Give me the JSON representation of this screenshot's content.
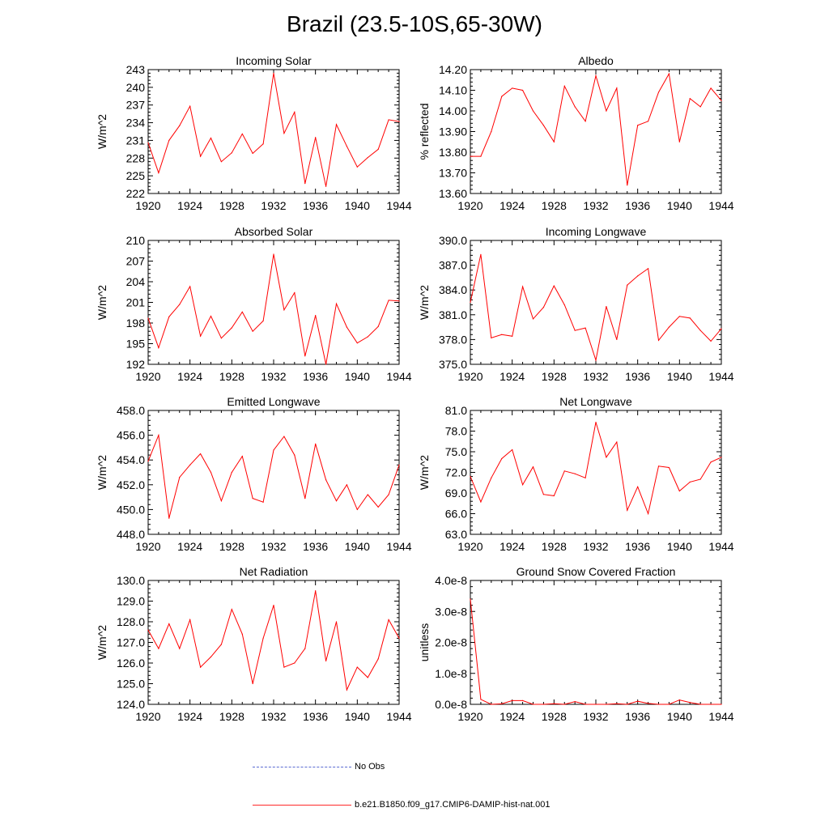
{
  "figure": {
    "title": "Brazil (23.5-10S,65-30W)"
  },
  "legend": {
    "items": [
      {
        "label": "No Obs",
        "color": "#5a6ad2",
        "style": "dashed"
      },
      {
        "label": "b.e21.B1850.f09_g17.CMIP6-DAMIP-hist-nat.001",
        "color": "#ff0000",
        "style": "solid"
      }
    ]
  },
  "chart_data": [
    {
      "type": "line",
      "title": "Incoming Solar",
      "ylabel": "W/m^2",
      "xlim": [
        1920,
        1944
      ],
      "ylim": [
        222,
        243
      ],
      "xticks": [
        1920,
        1924,
        1928,
        1932,
        1936,
        1940,
        1944
      ],
      "yticks": [
        "222",
        "225",
        "228",
        "231",
        "234",
        "237",
        "240",
        "243"
      ],
      "x": [
        1920,
        1921,
        1922,
        1923,
        1924,
        1925,
        1926,
        1927,
        1928,
        1929,
        1930,
        1931,
        1932,
        1933,
        1934,
        1935,
        1936,
        1937,
        1938,
        1939,
        1940,
        1941,
        1942,
        1943,
        1944
      ],
      "series": [
        {
          "values": [
            230.6,
            225.5,
            231.0,
            233.5,
            236.8,
            228.3,
            231.4,
            227.4,
            228.9,
            232.1,
            228.8,
            230.4,
            242.4,
            232.2,
            235.8,
            223.7,
            231.5,
            223.2,
            233.7,
            230.0,
            226.5,
            228.1,
            229.5,
            234.5,
            234.2
          ]
        }
      ]
    },
    {
      "type": "line",
      "title": "Albedo",
      "ylabel": "% reflected",
      "xlim": [
        1920,
        1944
      ],
      "ylim": [
        13.6,
        14.2
      ],
      "xticks": [
        1920,
        1924,
        1928,
        1932,
        1936,
        1940,
        1944
      ],
      "yticks": [
        "13.60",
        "13.70",
        "13.80",
        "13.90",
        "14.00",
        "14.10",
        "14.20"
      ],
      "x": [
        1920,
        1921,
        1922,
        1923,
        1924,
        1925,
        1926,
        1927,
        1928,
        1929,
        1930,
        1931,
        1932,
        1933,
        1934,
        1935,
        1936,
        1937,
        1938,
        1939,
        1940,
        1941,
        1942,
        1943,
        1944
      ],
      "series": [
        {
          "values": [
            13.78,
            13.78,
            13.9,
            14.07,
            14.11,
            14.1,
            14.0,
            13.93,
            13.85,
            14.12,
            14.02,
            13.95,
            14.17,
            14.0,
            14.11,
            13.64,
            13.93,
            13.95,
            14.09,
            14.18,
            13.85,
            14.06,
            14.02,
            14.11,
            14.05
          ]
        }
      ]
    },
    {
      "type": "line",
      "title": "Absorbed Solar",
      "ylabel": "W/m^2",
      "xlim": [
        1920,
        1944
      ],
      "ylim": [
        192,
        210
      ],
      "xticks": [
        1920,
        1924,
        1928,
        1932,
        1936,
        1940,
        1944
      ],
      "yticks": [
        "192",
        "195",
        "198",
        "201",
        "204",
        "207",
        "210"
      ],
      "x": [
        1920,
        1921,
        1922,
        1923,
        1924,
        1925,
        1926,
        1927,
        1928,
        1929,
        1930,
        1931,
        1932,
        1933,
        1934,
        1935,
        1936,
        1937,
        1938,
        1939,
        1940,
        1941,
        1942,
        1943,
        1944
      ],
      "series": [
        {
          "values": [
            198.7,
            194.4,
            198.9,
            200.7,
            203.3,
            196.1,
            199.0,
            195.8,
            197.3,
            199.6,
            196.8,
            198.3,
            208.0,
            199.9,
            202.4,
            193.2,
            199.1,
            192.0,
            200.8,
            197.4,
            195.1,
            196.0,
            197.5,
            201.3,
            201.2
          ]
        }
      ]
    },
    {
      "type": "line",
      "title": "Incoming Longwave",
      "ylabel": "W/m^2",
      "xlim": [
        1920,
        1944
      ],
      "ylim": [
        375,
        390
      ],
      "xticks": [
        1920,
        1924,
        1928,
        1932,
        1936,
        1940,
        1944
      ],
      "yticks": [
        "375.0",
        "378.0",
        "381.0",
        "384.0",
        "387.0",
        "390.0"
      ],
      "x": [
        1920,
        1921,
        1922,
        1923,
        1924,
        1925,
        1926,
        1927,
        1928,
        1929,
        1930,
        1931,
        1932,
        1933,
        1934,
        1935,
        1936,
        1937,
        1938,
        1939,
        1940,
        1941,
        1942,
        1943,
        1944
      ],
      "series": [
        {
          "values": [
            382.5,
            388.3,
            378.2,
            378.6,
            378.4,
            384.4,
            380.5,
            381.9,
            384.5,
            382.2,
            379.1,
            379.4,
            375.5,
            382.0,
            378.0,
            384.6,
            385.7,
            386.6,
            377.9,
            379.5,
            380.8,
            380.6,
            379.1,
            377.8,
            379.3
          ]
        }
      ]
    },
    {
      "type": "line",
      "title": "Emitted Longwave",
      "ylabel": "W/m^2",
      "xlim": [
        1920,
        1944
      ],
      "ylim": [
        448,
        458
      ],
      "xticks": [
        1920,
        1924,
        1928,
        1932,
        1936,
        1940,
        1944
      ],
      "yticks": [
        "448.0",
        "450.0",
        "452.0",
        "454.0",
        "456.0",
        "458.0"
      ],
      "x": [
        1920,
        1921,
        1922,
        1923,
        1924,
        1925,
        1926,
        1927,
        1928,
        1929,
        1930,
        1931,
        1932,
        1933,
        1934,
        1935,
        1936,
        1937,
        1938,
        1939,
        1940,
        1941,
        1942,
        1943,
        1944
      ],
      "series": [
        {
          "values": [
            453.9,
            456.0,
            449.3,
            452.6,
            453.6,
            454.5,
            453.0,
            450.7,
            453.0,
            454.3,
            450.9,
            450.6,
            454.8,
            455.9,
            454.4,
            450.9,
            455.3,
            452.4,
            450.7,
            452.0,
            450.0,
            451.2,
            450.2,
            451.2,
            453.6
          ]
        }
      ]
    },
    {
      "type": "line",
      "title": "Net Longwave",
      "ylabel": "W/m^2",
      "xlim": [
        1920,
        1944
      ],
      "ylim": [
        63,
        81
      ],
      "xticks": [
        1920,
        1924,
        1928,
        1932,
        1936,
        1940,
        1944
      ],
      "yticks": [
        "63.0",
        "66.0",
        "69.0",
        "72.0",
        "75.0",
        "78.0",
        "81.0"
      ],
      "x": [
        1920,
        1921,
        1922,
        1923,
        1924,
        1925,
        1926,
        1927,
        1928,
        1929,
        1930,
        1931,
        1932,
        1933,
        1934,
        1935,
        1936,
        1937,
        1938,
        1939,
        1940,
        1941,
        1942,
        1943,
        1944
      ],
      "series": [
        {
          "values": [
            71.4,
            67.7,
            71.2,
            74.0,
            75.3,
            70.2,
            72.8,
            68.8,
            68.6,
            72.2,
            71.8,
            71.2,
            79.3,
            74.2,
            76.4,
            66.5,
            69.9,
            66.0,
            72.9,
            72.7,
            69.3,
            70.6,
            71.0,
            73.5,
            74.2
          ]
        }
      ]
    },
    {
      "type": "line",
      "title": "Net Radiation",
      "ylabel": "W/m^2",
      "xlim": [
        1920,
        1944
      ],
      "ylim": [
        124,
        130
      ],
      "xticks": [
        1920,
        1924,
        1928,
        1932,
        1936,
        1940,
        1944
      ],
      "yticks": [
        "124.0",
        "125.0",
        "126.0",
        "127.0",
        "128.0",
        "129.0",
        "130.0"
      ],
      "x": [
        1920,
        1921,
        1922,
        1923,
        1924,
        1925,
        1926,
        1927,
        1928,
        1929,
        1930,
        1931,
        1932,
        1933,
        1934,
        1935,
        1936,
        1937,
        1938,
        1939,
        1940,
        1941,
        1942,
        1943,
        1944
      ],
      "series": [
        {
          "values": [
            127.6,
            126.7,
            127.9,
            126.7,
            128.1,
            125.8,
            126.3,
            126.9,
            128.6,
            127.4,
            125.0,
            127.2,
            128.8,
            125.8,
            126.0,
            126.7,
            129.5,
            126.1,
            128.0,
            124.7,
            125.8,
            125.3,
            126.2,
            128.1,
            127.2
          ]
        }
      ]
    },
    {
      "type": "line",
      "title": "Ground Snow Covered Fraction",
      "ylabel": "unitless",
      "xlim": [
        1920,
        1944
      ],
      "ylim": [
        0,
        4e-08
      ],
      "xticks": [
        1920,
        1924,
        1928,
        1932,
        1936,
        1940,
        1944
      ],
      "yticks": [
        "0.0e-8",
        "1.0e-8",
        "2.0e-8",
        "3.0e-8",
        "4.0e-8"
      ],
      "x": [
        1920,
        1921,
        1922,
        1923,
        1924,
        1925,
        1926,
        1927,
        1928,
        1929,
        1930,
        1931,
        1932,
        1933,
        1934,
        1935,
        1936,
        1937,
        1938,
        1939,
        1940,
        1941,
        1942,
        1943,
        1944
      ],
      "series": [
        {
          "values": [
            3.4e-08,
            1.6e-09,
            0,
            1.5e-10,
            1.2e-09,
            1.2e-09,
            0,
            0,
            2e-10,
            0,
            9e-10,
            0,
            0,
            0,
            2e-10,
            0,
            1e-09,
            3e-10,
            0,
            0,
            1.4e-09,
            6e-10,
            0,
            0,
            0
          ]
        }
      ]
    }
  ]
}
